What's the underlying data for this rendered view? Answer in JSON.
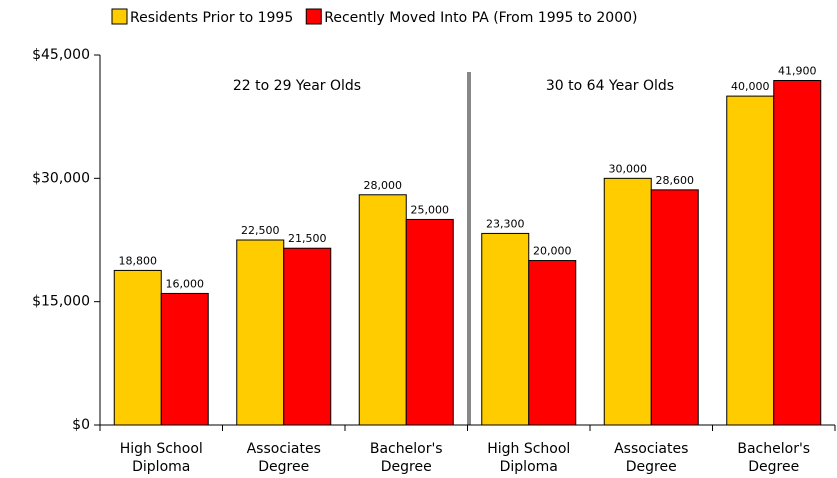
{
  "chart_data": {
    "type": "bar",
    "categories": [
      [
        "High School",
        "Diploma"
      ],
      [
        "Associates",
        "Degree"
      ],
      [
        "Bachelor's",
        "Degree"
      ],
      [
        "High School",
        "Diploma"
      ],
      [
        "Associates",
        "Degree"
      ],
      [
        "Bachelor's",
        "Degree"
      ]
    ],
    "annotations": [
      "22 to 29 Year Olds",
      "30 to 64 Year Olds"
    ],
    "series": [
      {
        "name": "Residents Prior to 1995",
        "color": "#ffcc00",
        "values": [
          18800,
          22500,
          28000,
          23300,
          30000,
          40000
        ],
        "value_labels": [
          "18,800",
          "22,500",
          "28,000",
          "23,300",
          "30,000",
          "40,000"
        ]
      },
      {
        "name": "Recently Moved Into PA (From 1995 to 2000)",
        "color": "#ff0000",
        "values": [
          16000,
          21500,
          25000,
          20000,
          28600,
          41900
        ],
        "value_labels": [
          "16,000",
          "21,500",
          "25,000",
          "20,000",
          "28,600",
          "41,900"
        ]
      }
    ],
    "ylim": [
      0,
      45000
    ],
    "yticks": [
      {
        "value": 0,
        "label": "$0"
      },
      {
        "value": 15000,
        "label": "$15,000"
      },
      {
        "value": 30000,
        "label": "$30,000"
      },
      {
        "value": 45000,
        "label": "$45,000"
      }
    ],
    "grid": false,
    "legend": "top"
  }
}
